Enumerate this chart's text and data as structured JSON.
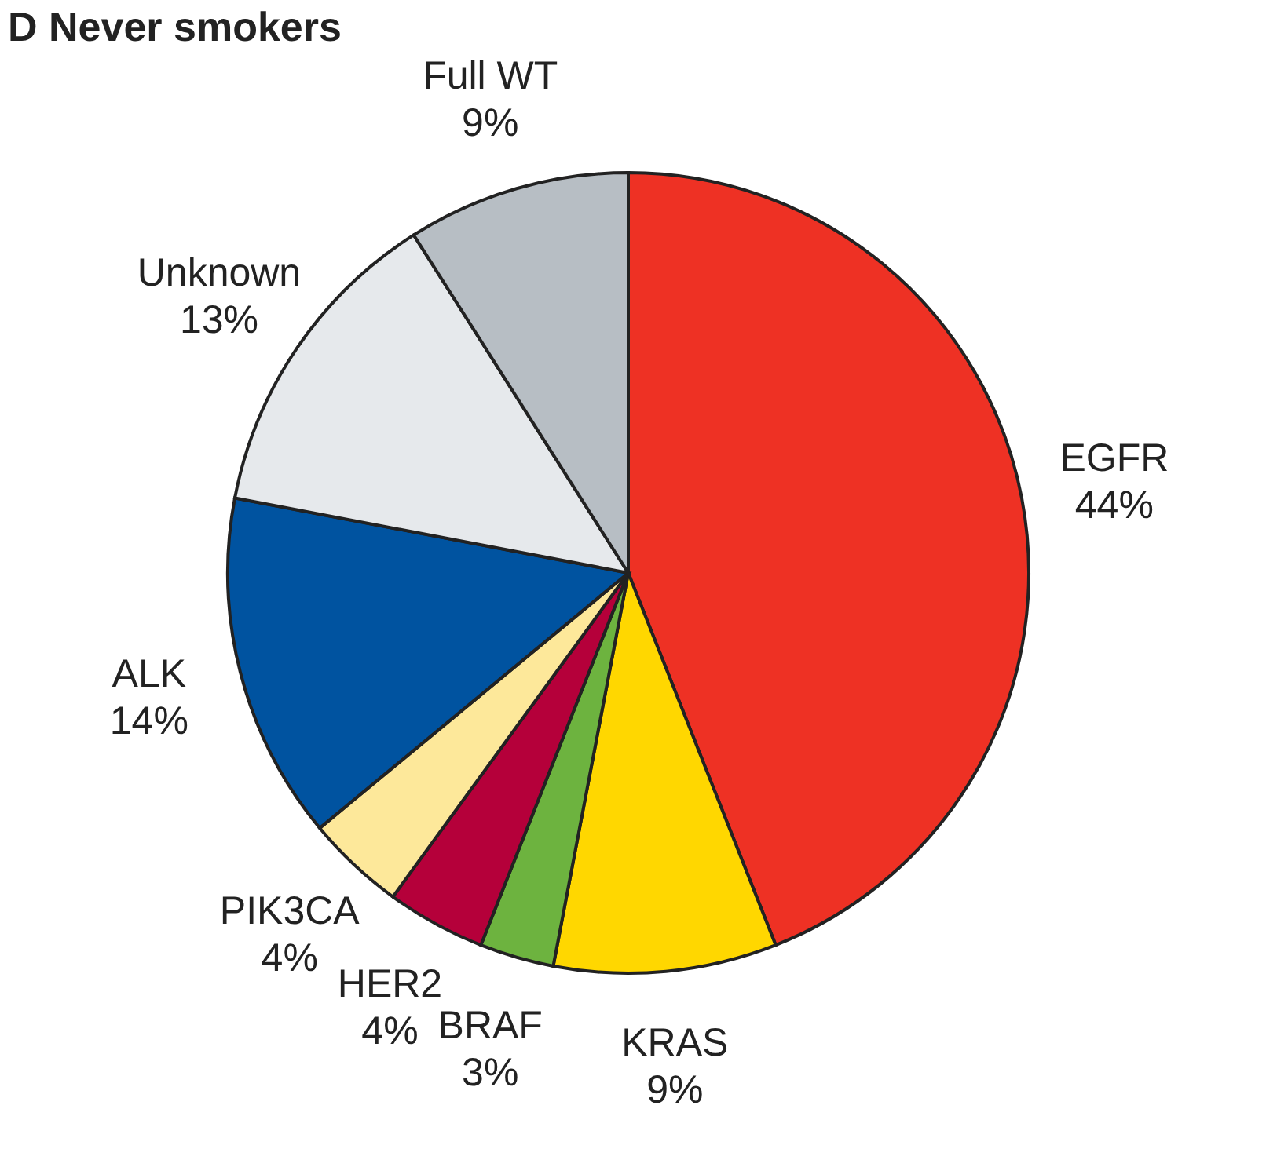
{
  "chart_data": {
    "type": "pie",
    "title": "D Never smokers",
    "categories": [
      "EGFR",
      "KRAS",
      "BRAF",
      "HER2",
      "PIK3CA",
      "ALK",
      "Unknown",
      "Full WT"
    ],
    "values": [
      44,
      9,
      3,
      4,
      4,
      14,
      13,
      9
    ],
    "colors": [
      "#ee3124",
      "#ffd700",
      "#6db33f",
      "#b5003a",
      "#fde89a",
      "#0053a0",
      "#e6e9ec",
      "#b7bec4"
    ],
    "value_labels": [
      "44%",
      "9%",
      "3%",
      "4%",
      "4%",
      "14%",
      "13%",
      "9%"
    ]
  }
}
